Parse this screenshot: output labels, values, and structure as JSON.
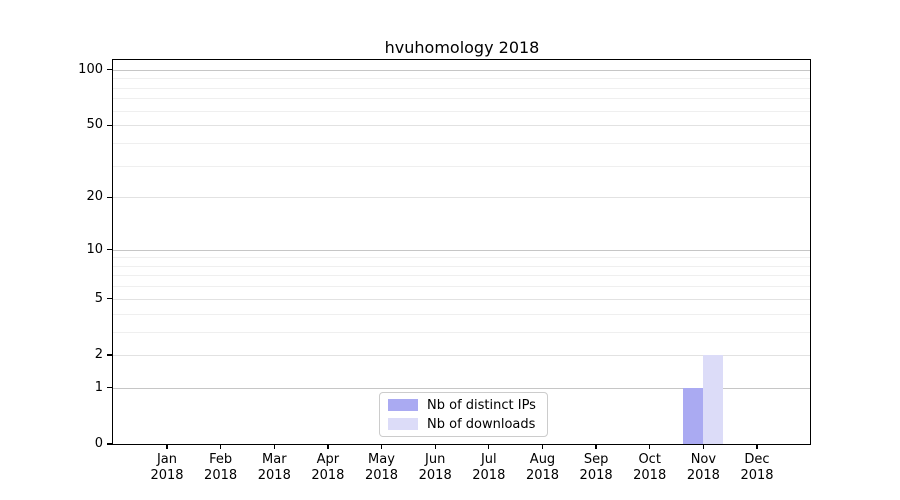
{
  "chart_data": {
    "type": "bar",
    "title": "hvuhomology 2018",
    "categories": [
      "Jan",
      "Feb",
      "Mar",
      "Apr",
      "May",
      "Jun",
      "Jul",
      "Aug",
      "Sep",
      "Oct",
      "Nov",
      "Dec"
    ],
    "category_sub_label": "2018",
    "series": [
      {
        "name": "Nb of distinct IPs",
        "color": "#aaaaf2",
        "values": [
          0,
          0,
          0,
          0,
          0,
          0,
          0,
          0,
          0,
          0,
          1,
          0
        ]
      },
      {
        "name": "Nb of downloads",
        "color": "#dcdcf8",
        "values": [
          0,
          0,
          0,
          0,
          0,
          0,
          0,
          0,
          0,
          0,
          2,
          0
        ]
      }
    ],
    "y_axis": {
      "scale": "log1p",
      "ticks": [
        0,
        1,
        2,
        5,
        10,
        20,
        50,
        100
      ],
      "decade_ticks": [
        1,
        10,
        100
      ],
      "minor_gridlines": [
        3,
        4,
        6,
        7,
        8,
        9,
        30,
        40,
        60,
        70,
        80,
        90
      ],
      "max": 113
    },
    "legend": {
      "position": "lower center"
    },
    "grid": true,
    "colors": {
      "decade_gridline": "#c6c6c6",
      "major_gridline": "#e2e2e2",
      "minor_gridline": "#efefef",
      "axis": "#000000",
      "background": "#ffffff",
      "legend_border": "#cccccc"
    }
  }
}
